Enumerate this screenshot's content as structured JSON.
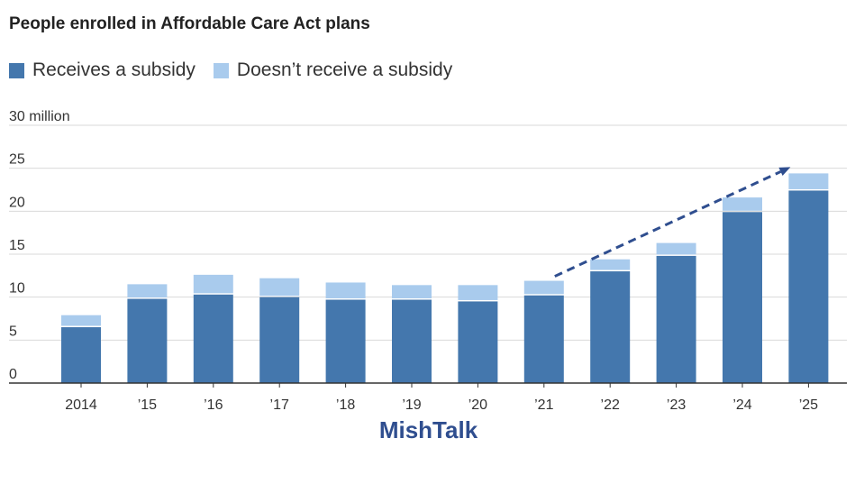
{
  "colors": {
    "subsidy": "#4477ad",
    "no_subsidy": "#a9cbed",
    "arrow": "#2f4e8f",
    "grid": "#d9d9d9",
    "axis": "#333333"
  },
  "brand": "MishTalk",
  "chart_data": {
    "type": "bar",
    "stacked": true,
    "title": "People enrolled in Affordable Care Act plans",
    "xlabel": "",
    "ylabel": "",
    "y_unit_label": "30 million",
    "categories": [
      "2014",
      "’15",
      "’16",
      "’17",
      "’18",
      "’19",
      "’20",
      "’21",
      "’22",
      "’23",
      "’24",
      "’25"
    ],
    "series": [
      {
        "name": "Receives a subsidy",
        "values": [
          6.5,
          9.8,
          10.3,
          10.0,
          9.7,
          9.7,
          9.5,
          10.2,
          13.0,
          14.8,
          19.9,
          22.4
        ]
      },
      {
        "name": "Doesn’t receive a subsidy",
        "values": [
          1.4,
          1.7,
          2.3,
          2.2,
          2.0,
          1.7,
          1.9,
          1.7,
          1.4,
          1.5,
          1.7,
          2.0
        ]
      }
    ],
    "ylim": [
      0,
      30
    ],
    "yticks": [
      0,
      5,
      10,
      15,
      20,
      25,
      30
    ],
    "ytick_labels": [
      "0",
      "5",
      "10",
      "15",
      "20",
      "25",
      "30 million"
    ],
    "grid": true,
    "legend": "top-left",
    "annotation": {
      "type": "dashed-arrow",
      "from_category": "’21",
      "to_category": "’25",
      "meaning": "upward trend"
    }
  }
}
